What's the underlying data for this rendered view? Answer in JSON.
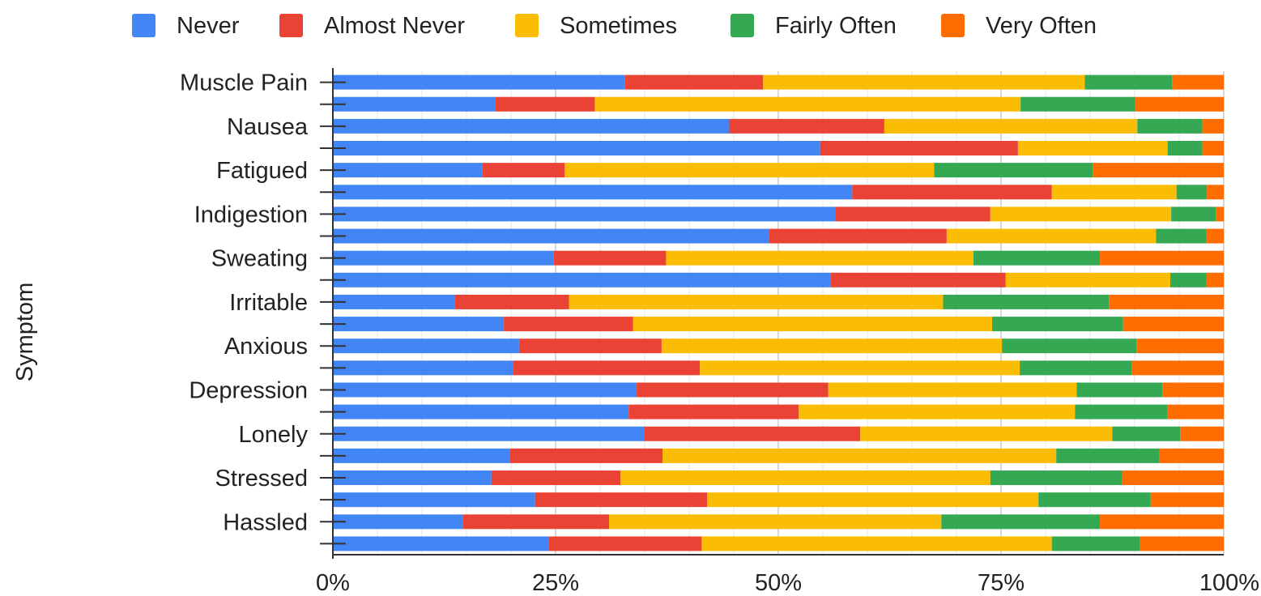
{
  "chart_data": {
    "type": "bar",
    "orientation": "horizontal",
    "stacked": "percent",
    "ylabel": "Symptom",
    "xlabel": "",
    "xlim": [
      0,
      100
    ],
    "x_ticks": [
      "0%",
      "25%",
      "50%",
      "75%",
      "100%"
    ],
    "legend_position": "top",
    "grid": true,
    "series": [
      {
        "name": "Never",
        "color": "#4285f4"
      },
      {
        "name": "Almost Never",
        "color": "#ea4335"
      },
      {
        "name": "Sometimes",
        "color": "#fbbc04"
      },
      {
        "name": "Fairly Often",
        "color": "#34a853"
      },
      {
        "name": "Very Often",
        "color": "#ff6d01"
      }
    ],
    "rows": [
      {
        "label": "Muscle Pain",
        "values": [
          32.8,
          15.5,
          36.1,
          9.8,
          5.8
        ]
      },
      {
        "label": "",
        "values": [
          18.2,
          11.2,
          47.8,
          12.8,
          10.0
        ]
      },
      {
        "label": "Nausea",
        "values": [
          44.5,
          17.4,
          28.4,
          7.3,
          2.4
        ]
      },
      {
        "label": "",
        "values": [
          54.7,
          22.2,
          16.8,
          3.9,
          2.4
        ]
      },
      {
        "label": "Fatigued",
        "values": [
          16.8,
          9.2,
          41.5,
          17.8,
          14.7
        ]
      },
      {
        "label": "",
        "values": [
          58.3,
          22.4,
          14.0,
          3.4,
          1.9
        ]
      },
      {
        "label": "Indigestion",
        "values": [
          56.4,
          17.4,
          20.3,
          5.0,
          0.9
        ]
      },
      {
        "label": "",
        "values": [
          49.0,
          19.9,
          23.5,
          5.6,
          2.0
        ]
      },
      {
        "label": "Sweating",
        "values": [
          24.8,
          12.6,
          34.5,
          14.2,
          13.9
        ]
      },
      {
        "label": "",
        "values": [
          55.9,
          19.6,
          18.5,
          4.0,
          2.0
        ]
      },
      {
        "label": "Irritable",
        "values": [
          13.7,
          12.8,
          42.0,
          18.6,
          12.9
        ]
      },
      {
        "label": "",
        "values": [
          19.2,
          14.5,
          40.3,
          14.7,
          11.3
        ]
      },
      {
        "label": "Anxious",
        "values": [
          20.9,
          16.0,
          38.2,
          15.1,
          9.8
        ]
      },
      {
        "label": "",
        "values": [
          20.2,
          21.0,
          35.9,
          12.6,
          10.3
        ]
      },
      {
        "label": "Depression",
        "values": [
          34.1,
          21.5,
          27.9,
          9.6,
          6.9
        ]
      },
      {
        "label": "",
        "values": [
          33.2,
          19.1,
          31.0,
          10.4,
          6.3
        ]
      },
      {
        "label": "Lonely",
        "values": [
          35.0,
          24.2,
          28.3,
          7.6,
          4.9
        ]
      },
      {
        "label": "",
        "values": [
          19.9,
          17.1,
          44.2,
          11.6,
          7.2
        ]
      },
      {
        "label": "Stressed",
        "values": [
          17.8,
          14.5,
          41.5,
          14.8,
          11.4
        ]
      },
      {
        "label": "",
        "values": [
          22.7,
          19.3,
          37.2,
          12.6,
          8.2
        ]
      },
      {
        "label": "Hassled",
        "values": [
          14.6,
          16.4,
          37.3,
          17.8,
          13.9
        ]
      },
      {
        "label": "",
        "values": [
          24.2,
          17.2,
          39.3,
          9.9,
          9.4
        ]
      }
    ]
  }
}
